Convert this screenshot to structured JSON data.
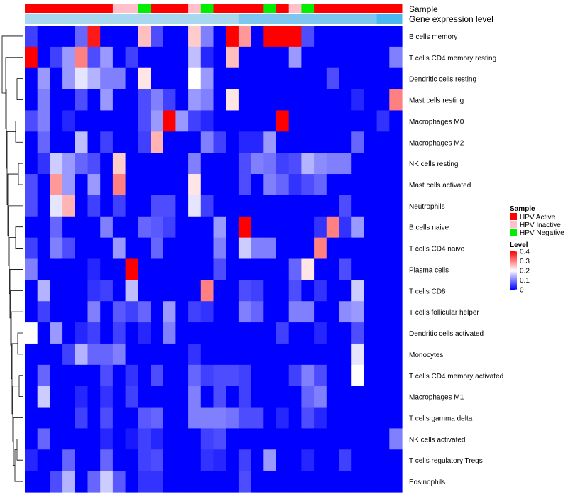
{
  "chart_data": {
    "type": "heatmap",
    "column_annotations": {
      "sample_title": "Sample",
      "expression_title": "Gene expression level",
      "sample_groups": [
        "Active",
        "Active",
        "Active",
        "Active",
        "Active",
        "Active",
        "Active",
        "Inactive",
        "Inactive",
        "Negative",
        "Active",
        "Active",
        "Active",
        "Inactive",
        "Negative",
        "Active",
        "Active",
        "Active",
        "Active",
        "Negative",
        "Active",
        "Inactive",
        "Negative",
        "Active",
        "Active",
        "Active",
        "Active",
        "Active",
        "Active",
        "Active"
      ],
      "expression_values": [
        0,
        0,
        0,
        0,
        0,
        0,
        0,
        0,
        0,
        0,
        0,
        0,
        0,
        0,
        0,
        0,
        0,
        0.5,
        0.5,
        0.5,
        0.5,
        0.5,
        0.5,
        0.5,
        0.5,
        0.5,
        0.5,
        0.5,
        1,
        1
      ]
    },
    "rows": [
      "B cells memory",
      "T cells CD4 memory resting",
      "Dendritic cells resting",
      "Mast cells resting",
      "Macrophages M0",
      "Macrophages M2",
      "NK cells resting",
      "Mast cells activated",
      "Neutrophils",
      "B cells naive",
      "T cells CD4 naive",
      "Plasma cells",
      "T cells CD8",
      "T cells follicular helper",
      "Dendritic cells activated",
      "Monocytes",
      "T cells CD4 memory activated",
      "Macrophages M1",
      "T cells gamma delta",
      "NK cells activated",
      "T cells regulatory  Tregs",
      "Eosinophils"
    ],
    "values": [
      [
        0.05,
        0,
        0,
        0,
        0.08,
        0.38,
        0,
        0,
        0,
        0.25,
        0.06,
        0,
        0,
        0.24,
        0.1,
        0,
        0.4,
        0.28,
        0,
        0.4,
        0.4,
        0.4,
        0.06,
        0,
        0,
        0,
        0,
        0,
        0,
        0
      ],
      [
        0.4,
        0,
        0.05,
        0.12,
        0.3,
        0.06,
        0.12,
        0,
        0.05,
        0,
        0,
        0,
        0,
        0.15,
        0.03,
        0,
        0.25,
        0,
        0,
        0,
        0,
        0.12,
        0,
        0,
        0,
        0,
        0,
        0,
        0,
        0.1
      ],
      [
        0,
        0.12,
        0,
        0.12,
        0.18,
        0.14,
        0.1,
        0.1,
        0,
        0.22,
        0,
        0,
        0,
        0.2,
        0.12,
        0,
        0,
        0,
        0,
        0,
        0,
        0,
        0,
        0,
        0.06,
        0,
        0,
        0,
        0,
        0
      ],
      [
        0,
        0.1,
        0,
        0,
        0.06,
        0,
        0.12,
        0,
        0,
        0.06,
        0.1,
        0.05,
        0,
        0.12,
        0.1,
        0,
        0.22,
        0,
        0,
        0,
        0,
        0,
        0,
        0,
        0,
        0,
        0.03,
        0,
        0,
        0.3
      ],
      [
        0.06,
        0.1,
        0,
        0.03,
        0,
        0,
        0,
        0,
        0,
        0.06,
        0.12,
        0.4,
        0.12,
        0.05,
        0.03,
        0,
        0,
        0,
        0,
        0,
        0.4,
        0,
        0,
        0,
        0,
        0,
        0,
        0,
        0.04,
        0
      ],
      [
        0,
        0.08,
        0,
        0,
        0.15,
        0,
        0.05,
        0,
        0,
        0.05,
        0.26,
        0,
        0,
        0,
        0.1,
        0.05,
        0,
        0.03,
        0.03,
        0.12,
        0,
        0,
        0,
        0,
        0,
        0,
        0.08,
        0,
        0,
        0
      ],
      [
        0,
        0.04,
        0.16,
        0.12,
        0.08,
        0.06,
        0,
        0.24,
        0,
        0,
        0,
        0,
        0,
        0.1,
        0,
        0,
        0,
        0.06,
        0.1,
        0.09,
        0.05,
        0.06,
        0.14,
        0.11,
        0.1,
        0.1,
        0,
        0,
        0,
        0
      ],
      [
        0.06,
        0,
        0.28,
        0.12,
        0,
        0.12,
        0,
        0.3,
        0,
        0,
        0,
        0,
        0,
        0.22,
        0,
        0,
        0,
        0.06,
        0,
        0.1,
        0.08,
        0.04,
        0.06,
        0.08,
        0,
        0,
        0,
        0,
        0,
        0
      ],
      [
        0.06,
        0,
        0.18,
        0.26,
        0,
        0.05,
        0,
        0.05,
        0,
        0,
        0.06,
        0.06,
        0,
        0.18,
        0.05,
        0,
        0,
        0,
        0,
        0,
        0,
        0,
        0,
        0,
        0,
        0.06,
        0,
        0,
        0,
        0
      ],
      [
        0,
        0,
        0.08,
        0,
        0,
        0,
        0.1,
        0,
        0,
        0.08,
        0.07,
        0.05,
        0,
        0,
        0,
        0.12,
        0,
        0.4,
        0,
        0,
        0,
        0,
        0,
        0.04,
        0.3,
        0.04,
        0.12,
        0,
        0,
        0
      ],
      [
        0.05,
        0,
        0.1,
        0.06,
        0,
        0,
        0,
        0.12,
        0,
        0,
        0.08,
        0,
        0,
        0,
        0,
        0.1,
        0,
        0.16,
        0.1,
        0.1,
        0,
        0,
        0,
        0.3,
        0,
        0,
        0,
        0,
        0,
        0
      ],
      [
        0.1,
        0,
        0,
        0,
        0,
        0.03,
        0,
        0,
        0.4,
        0,
        0,
        0,
        0,
        0,
        0,
        0.06,
        0,
        0,
        0,
        0,
        0,
        0.08,
        0.22,
        0,
        0,
        0.06,
        0,
        0,
        0,
        0
      ],
      [
        0,
        0.14,
        0,
        0,
        0,
        0.04,
        0.05,
        0,
        0.15,
        0,
        0,
        0,
        0,
        0,
        0.3,
        0,
        0,
        0.06,
        0.05,
        0,
        0,
        0.06,
        0,
        0.04,
        0,
        0,
        0.16,
        0,
        0,
        0
      ],
      [
        0,
        0.05,
        0,
        0,
        0,
        0.1,
        0,
        0.07,
        0.05,
        0.08,
        0,
        0.12,
        0,
        0.05,
        0.04,
        0,
        0,
        0.1,
        0.08,
        0,
        0,
        0.1,
        0.1,
        0,
        0,
        0.11,
        0.12,
        0,
        0,
        0
      ],
      [
        0.2,
        0,
        0.12,
        0,
        0.03,
        0.05,
        0,
        0.05,
        0,
        0.03,
        0,
        0.1,
        0,
        0,
        0,
        0,
        0,
        0,
        0,
        0,
        0.05,
        0,
        0,
        0.03,
        0,
        0,
        0.06,
        0,
        0,
        0
      ],
      [
        0,
        0,
        0,
        0.05,
        0.14,
        0.08,
        0.08,
        0.1,
        0,
        0,
        0,
        0,
        0,
        0.04,
        0,
        0,
        0,
        0,
        0,
        0,
        0,
        0,
        0,
        0,
        0,
        0,
        0.18,
        0,
        0,
        0
      ],
      [
        0,
        0.08,
        0,
        0,
        0,
        0,
        0.06,
        0,
        0.04,
        0,
        0.06,
        0,
        0,
        0.08,
        0.05,
        0.06,
        0.06,
        0.05,
        0,
        0,
        0,
        0.05,
        0.1,
        0.06,
        0,
        0,
        0.2,
        0,
        0,
        0
      ],
      [
        0,
        0.16,
        0,
        0,
        0.03,
        0,
        0.04,
        0,
        0.05,
        0,
        0,
        0,
        0,
        0.1,
        0,
        0.06,
        0,
        0.05,
        0,
        0,
        0,
        0,
        0.08,
        0.1,
        0,
        0,
        0,
        0,
        0,
        0
      ],
      [
        0,
        0,
        0,
        0,
        0.05,
        0,
        0.06,
        0,
        0,
        0.07,
        0.08,
        0,
        0,
        0.1,
        0.1,
        0.1,
        0.09,
        0.06,
        0.06,
        0,
        0.03,
        0,
        0.06,
        0.03,
        0,
        0,
        0,
        0,
        0,
        0
      ],
      [
        0,
        0.08,
        0,
        0,
        0,
        0,
        0.03,
        0,
        0.02,
        0.05,
        0.03,
        0,
        0,
        0,
        0.05,
        0.06,
        0,
        0,
        0,
        0,
        0,
        0,
        0,
        0,
        0,
        0,
        0,
        0,
        0,
        0.1
      ],
      [
        0.03,
        0,
        0,
        0.08,
        0,
        0,
        0.08,
        0,
        0,
        0.05,
        0.06,
        0,
        0,
        0,
        0.04,
        0.03,
        0,
        0.05,
        0,
        0.12,
        0,
        0,
        0.03,
        0,
        0,
        0.05,
        0,
        0,
        0,
        0
      ],
      [
        0,
        0,
        0.06,
        0.14,
        0,
        0.08,
        0.16,
        0.07,
        0,
        0.04,
        0.04,
        0,
        0,
        0,
        0,
        0,
        0,
        0.06,
        0,
        0,
        0,
        0,
        0,
        0,
        0,
        0,
        0,
        0,
        0,
        0
      ]
    ],
    "row_order_leaves": 22,
    "legend": {
      "sample_title": "Sample",
      "sample_items": [
        {
          "label": "HPV Active",
          "color": "#ff0000"
        },
        {
          "label": "HPV Inactive",
          "color": "#ffc0cb"
        },
        {
          "label": "HPV Negative",
          "color": "#00ee00"
        }
      ],
      "level_title": "Level",
      "level_ticks": [
        0.4,
        0.3,
        0.2,
        0.1,
        0
      ],
      "level_tick_labels": [
        "0.4",
        "0.3",
        "0.2",
        "0.1",
        "0"
      ],
      "range": [
        0,
        0.4
      ]
    },
    "colors": {
      "low": "#0000ff",
      "mid": "#ffffff",
      "high": "#ff0000",
      "expr_light": "#a8d8f0",
      "expr_dark": "#4ab8f0"
    }
  }
}
